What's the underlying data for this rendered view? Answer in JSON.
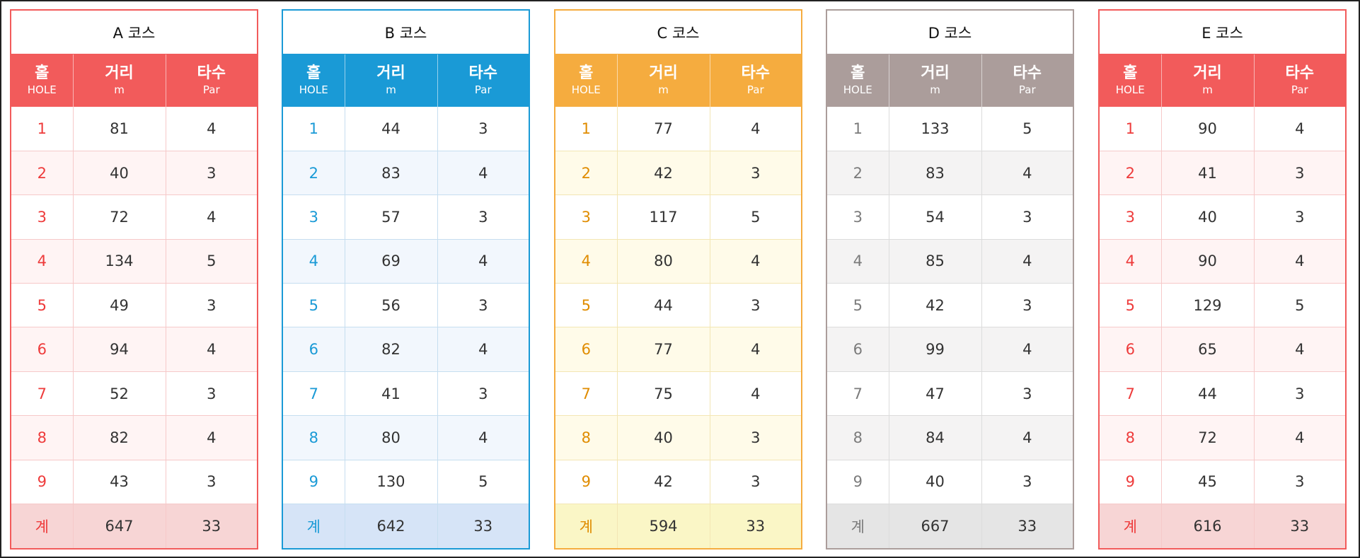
{
  "headers": {
    "hole_ko": "홀",
    "hole_en": "HOLE",
    "dist_ko": "거리",
    "dist_en": "m",
    "par_ko": "타수",
    "par_en": "Par"
  },
  "total_label": "계",
  "courses": [
    {
      "title": "A 코스",
      "accent_color": "#f25b5b",
      "rows": [
        {
          "hole": "1",
          "distance": "81",
          "par": "4"
        },
        {
          "hole": "2",
          "distance": "40",
          "par": "3"
        },
        {
          "hole": "3",
          "distance": "72",
          "par": "4"
        },
        {
          "hole": "4",
          "distance": "134",
          "par": "5"
        },
        {
          "hole": "5",
          "distance": "49",
          "par": "3"
        },
        {
          "hole": "6",
          "distance": "94",
          "par": "4"
        },
        {
          "hole": "7",
          "distance": "52",
          "par": "3"
        },
        {
          "hole": "8",
          "distance": "82",
          "par": "4"
        },
        {
          "hole": "9",
          "distance": "43",
          "par": "3"
        }
      ],
      "total": {
        "distance": "647",
        "par": "33"
      }
    },
    {
      "title": "B 코스",
      "accent_color": "#1a9ad6",
      "rows": [
        {
          "hole": "1",
          "distance": "44",
          "par": "3"
        },
        {
          "hole": "2",
          "distance": "83",
          "par": "4"
        },
        {
          "hole": "3",
          "distance": "57",
          "par": "3"
        },
        {
          "hole": "4",
          "distance": "69",
          "par": "4"
        },
        {
          "hole": "5",
          "distance": "56",
          "par": "3"
        },
        {
          "hole": "6",
          "distance": "82",
          "par": "4"
        },
        {
          "hole": "7",
          "distance": "41",
          "par": "3"
        },
        {
          "hole": "8",
          "distance": "80",
          "par": "4"
        },
        {
          "hole": "9",
          "distance": "130",
          "par": "5"
        }
      ],
      "total": {
        "distance": "642",
        "par": "33"
      }
    },
    {
      "title": "C 코스",
      "accent_color": "#f5ac3f",
      "rows": [
        {
          "hole": "1",
          "distance": "77",
          "par": "4"
        },
        {
          "hole": "2",
          "distance": "42",
          "par": "3"
        },
        {
          "hole": "3",
          "distance": "117",
          "par": "5"
        },
        {
          "hole": "4",
          "distance": "80",
          "par": "4"
        },
        {
          "hole": "5",
          "distance": "44",
          "par": "3"
        },
        {
          "hole": "6",
          "distance": "77",
          "par": "4"
        },
        {
          "hole": "7",
          "distance": "75",
          "par": "4"
        },
        {
          "hole": "8",
          "distance": "40",
          "par": "3"
        },
        {
          "hole": "9",
          "distance": "42",
          "par": "3"
        }
      ],
      "total": {
        "distance": "594",
        "par": "33"
      }
    },
    {
      "title": "D 코스",
      "accent_color": "#ab9d9b",
      "rows": [
        {
          "hole": "1",
          "distance": "133",
          "par": "5"
        },
        {
          "hole": "2",
          "distance": "83",
          "par": "4"
        },
        {
          "hole": "3",
          "distance": "54",
          "par": "3"
        },
        {
          "hole": "4",
          "distance": "85",
          "par": "4"
        },
        {
          "hole": "5",
          "distance": "42",
          "par": "3"
        },
        {
          "hole": "6",
          "distance": "99",
          "par": "4"
        },
        {
          "hole": "7",
          "distance": "47",
          "par": "3"
        },
        {
          "hole": "8",
          "distance": "84",
          "par": "4"
        },
        {
          "hole": "9",
          "distance": "40",
          "par": "3"
        }
      ],
      "total": {
        "distance": "667",
        "par": "33"
      }
    },
    {
      "title": "E 코스",
      "accent_color": "#f25b5b",
      "rows": [
        {
          "hole": "1",
          "distance": "90",
          "par": "4"
        },
        {
          "hole": "2",
          "distance": "41",
          "par": "3"
        },
        {
          "hole": "3",
          "distance": "40",
          "par": "3"
        },
        {
          "hole": "4",
          "distance": "90",
          "par": "4"
        },
        {
          "hole": "5",
          "distance": "129",
          "par": "5"
        },
        {
          "hole": "6",
          "distance": "65",
          "par": "4"
        },
        {
          "hole": "7",
          "distance": "44",
          "par": "3"
        },
        {
          "hole": "8",
          "distance": "72",
          "par": "4"
        },
        {
          "hole": "9",
          "distance": "45",
          "par": "3"
        }
      ],
      "total": {
        "distance": "616",
        "par": "33"
      }
    }
  ]
}
